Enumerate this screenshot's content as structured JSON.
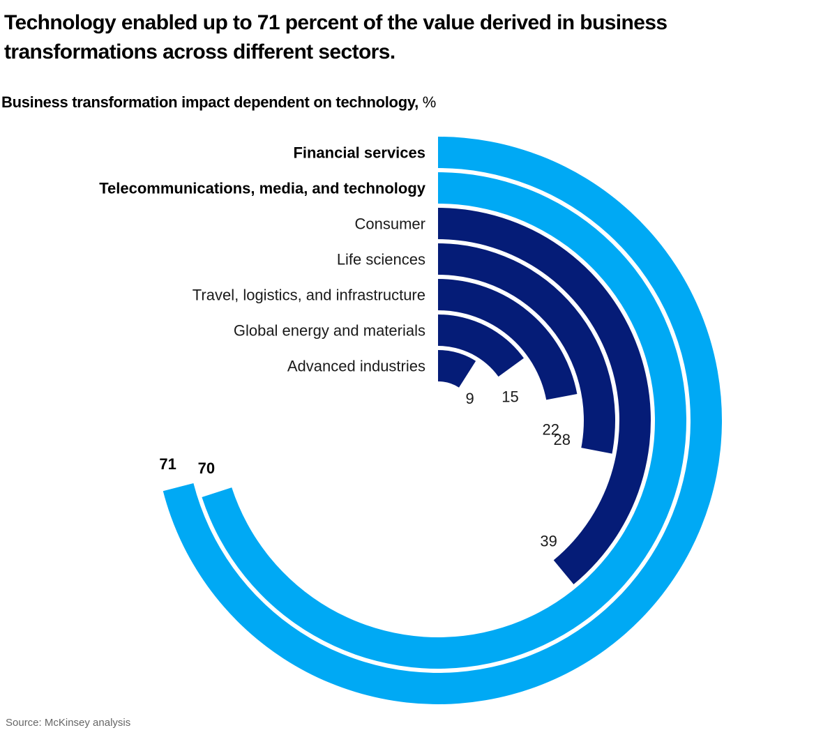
{
  "title": "Technology enabled up to 71 percent of the value derived in business transformations across different sectors.",
  "subtitle": {
    "main": "Business transformation impact dependent on technology,",
    "unit": "%"
  },
  "source": "Source: McKinsey analysis",
  "colors": {
    "highlight": "#00A9F4",
    "default": "#051C77"
  },
  "chart_data": {
    "type": "radial-bar",
    "title": "Business transformation impact dependent on technology, %",
    "value_scale": [
      0,
      100
    ],
    "full_circle_equals": 100,
    "start": "top",
    "direction": "clockwise",
    "categories": [
      "Financial services",
      "Telecommunications, media, and technology",
      "Consumer",
      "Life sciences",
      "Travel, logistics, and infrastructure",
      "Global energy and materials",
      "Advanced industries"
    ],
    "values": [
      71,
      70,
      39,
      28,
      22,
      15,
      9
    ],
    "highlighted": [
      true,
      true,
      false,
      false,
      false,
      false,
      false
    ],
    "order": "outer-to-inner"
  }
}
